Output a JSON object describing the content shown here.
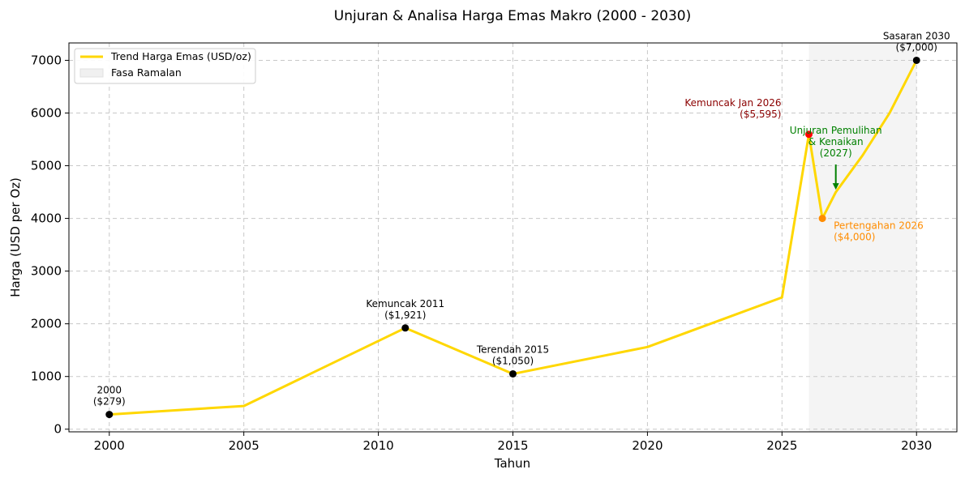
{
  "chart_data": {
    "type": "line",
    "title": "Unjuran & Analisa Harga Emas Makro (2000 - 2030)",
    "xlabel": "Tahun",
    "ylabel": "Harga (USD per Oz)",
    "xlim": [
      1998.5,
      2031.5
    ],
    "ylim": [
      -50,
      7330
    ],
    "xticks": [
      2000,
      2005,
      2010,
      2015,
      2020,
      2025,
      2030
    ],
    "yticks": [
      0,
      1000,
      2000,
      3000,
      4000,
      5000,
      6000,
      7000
    ],
    "grid": true,
    "legend_position": "top-left",
    "series": [
      {
        "name": "Trend Harga Emas (USD/oz)",
        "color": "#FFD700",
        "x": [
          2000,
          2005,
          2011,
          2015,
          2020,
          2025,
          2026,
          2026.5,
          2027,
          2028,
          2029,
          2030
        ],
        "y": [
          279,
          440,
          1921,
          1050,
          1560,
          2500,
          5595,
          4000,
          4500,
          5200,
          6000,
          7000
        ]
      }
    ],
    "forecast_region": {
      "label": "Fasa Ramalan",
      "x_start": 2026,
      "x_end": 2030,
      "color": "#f0f0f0"
    },
    "markers": [
      {
        "x": 2000,
        "y": 279,
        "color": "#000000"
      },
      {
        "x": 2011,
        "y": 1921,
        "color": "#000000"
      },
      {
        "x": 2015,
        "y": 1050,
        "color": "#000000"
      },
      {
        "x": 2030,
        "y": 7000,
        "color": "#000000"
      },
      {
        "x": 2026,
        "y": 5595,
        "color": "#FF0000"
      },
      {
        "x": 2026.5,
        "y": 4000,
        "color": "#FF8C00"
      }
    ],
    "annotations": [
      {
        "lines": [
          "2000",
          "($279)"
        ],
        "x": 2000,
        "y": 279,
        "pos": "above",
        "color": "#000000"
      },
      {
        "lines": [
          "Kemuncak 2011",
          "($1,921)"
        ],
        "x": 2011,
        "y": 1921,
        "pos": "above",
        "color": "#000000"
      },
      {
        "lines": [
          "Terendah 2015",
          "($1,050)"
        ],
        "x": 2015,
        "y": 1050,
        "pos": "above",
        "color": "#000000"
      },
      {
        "lines": [
          "Sasaran 2030",
          "($7,000)"
        ],
        "x": 2030,
        "y": 7000,
        "pos": "above",
        "color": "#000000"
      },
      {
        "lines": [
          "Kemuncak Jan 2026",
          "($5,595)"
        ],
        "x": 2026,
        "y": 5595,
        "pos": "left-above",
        "color": "#8B0000"
      },
      {
        "lines": [
          "Pertengahan 2026",
          "($4,000)"
        ],
        "x": 2026.5,
        "y": 4000,
        "pos": "right-below",
        "color": "#FF8C00"
      },
      {
        "lines": [
          "Unjuran Pemulihan",
          "& Kenaikan",
          "(2027)"
        ],
        "x": 2027,
        "y": 4500,
        "pos": "arrow-above",
        "color": "#008000"
      }
    ]
  }
}
